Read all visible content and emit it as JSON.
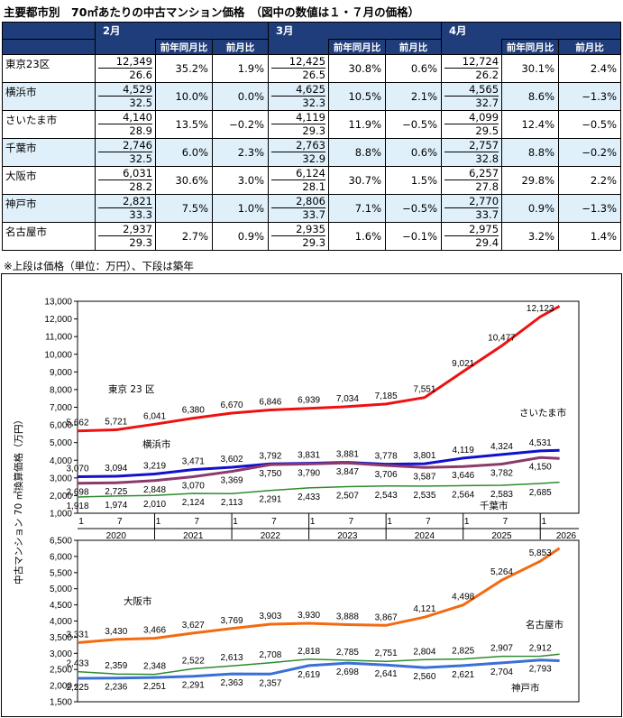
{
  "title": "主要都市別　70㎡あたりの中古マンション価格　（図中の数値は１・７月の価格）",
  "table": {
    "months": [
      "2月",
      "3月",
      "4月"
    ],
    "sub_headers": [
      "前年同月比",
      "前月比"
    ],
    "rows": [
      {
        "city": "東京23区",
        "shade": false,
        "cells": [
          {
            "price": "12,349",
            "age": "26.6",
            "yoy": "35.2%",
            "mom": "1.9%"
          },
          {
            "price": "12,425",
            "age": "26.5",
            "yoy": "30.8%",
            "mom": "0.6%"
          },
          {
            "price": "12,724",
            "age": "26.2",
            "yoy": "30.1%",
            "mom": "2.4%"
          }
        ]
      },
      {
        "city": "横浜市",
        "shade": true,
        "cells": [
          {
            "price": "4,529",
            "age": "32.5",
            "yoy": "10.0%",
            "mom": "0.0%"
          },
          {
            "price": "4,625",
            "age": "32.3",
            "yoy": "10.5%",
            "mom": "2.1%"
          },
          {
            "price": "4,565",
            "age": "32.7",
            "yoy": "8.6%",
            "mom": "−1.3%"
          }
        ]
      },
      {
        "city": "さいたま市",
        "shade": false,
        "cells": [
          {
            "price": "4,140",
            "age": "28.9",
            "yoy": "13.5%",
            "mom": "−0.2%"
          },
          {
            "price": "4,119",
            "age": "29.3",
            "yoy": "11.9%",
            "mom": "−0.5%"
          },
          {
            "price": "4,099",
            "age": "29.5",
            "yoy": "12.4%",
            "mom": "−0.5%"
          }
        ]
      },
      {
        "city": "千葉市",
        "shade": true,
        "cells": [
          {
            "price": "2,746",
            "age": "32.5",
            "yoy": "6.0%",
            "mom": "2.3%"
          },
          {
            "price": "2,763",
            "age": "32.9",
            "yoy": "8.8%",
            "mom": "0.6%"
          },
          {
            "price": "2,757",
            "age": "32.8",
            "yoy": "8.8%",
            "mom": "−0.2%"
          }
        ]
      },
      {
        "city": "大阪市",
        "shade": false,
        "cells": [
          {
            "price": "6,031",
            "age": "28.2",
            "yoy": "30.6%",
            "mom": "3.0%"
          },
          {
            "price": "6,124",
            "age": "28.1",
            "yoy": "30.7%",
            "mom": "1.5%"
          },
          {
            "price": "6,257",
            "age": "27.8",
            "yoy": "29.8%",
            "mom": "2.2%"
          }
        ]
      },
      {
        "city": "神戸市",
        "shade": true,
        "cells": [
          {
            "price": "2,821",
            "age": "33.3",
            "yoy": "7.5%",
            "mom": "1.0%"
          },
          {
            "price": "2,806",
            "age": "33.7",
            "yoy": "7.1%",
            "mom": "−0.5%"
          },
          {
            "price": "2,770",
            "age": "33.7",
            "yoy": "0.9%",
            "mom": "−1.3%"
          }
        ]
      },
      {
        "city": "名古屋市",
        "shade": false,
        "cells": [
          {
            "price": "2,937",
            "age": "29.3",
            "yoy": "2.7%",
            "mom": "0.9%"
          },
          {
            "price": "2,935",
            "age": "29.3",
            "yoy": "1.6%",
            "mom": "−0.1%"
          },
          {
            "price": "2,975",
            "age": "29.4",
            "yoy": "3.2%",
            "mom": "1.4%"
          }
        ]
      }
    ]
  },
  "footnote": "※上段は価格（単位：万円）、下段は築年",
  "chart_data": {
    "type": "line",
    "ylabel": "中古マンション 70 ㎡換算価格（万円）",
    "x": [
      "2020-01",
      "2020-07",
      "2021-01",
      "2021-07",
      "2022-01",
      "2022-07",
      "2023-01",
      "2023-07",
      "2024-01",
      "2024-07",
      "2025-01",
      "2025-07",
      "2026-01",
      "2026-04"
    ],
    "x_tick_labels": [
      "1",
      "7",
      "1",
      "7",
      "1",
      "7",
      "1",
      "7",
      "1",
      "7",
      "1",
      "7",
      "1",
      "7"
    ],
    "year_labels": [
      "2020",
      "2021",
      "2022",
      "2023",
      "2024",
      "2025",
      "2026"
    ],
    "panels": [
      {
        "ylim": [
          1000,
          13000
        ],
        "ytick_step": 1000,
        "series": [
          {
            "name": "東京 23 区",
            "color": "#ee1111",
            "labels": [
              "5,662",
              "5,721",
              "6,041",
              "6,380",
              "6,670",
              "6,846",
              "6,939",
              "7,034",
              "7,185",
              "7,551",
              "9,021",
              "10,477",
              "12,123",
              ""
            ],
            "values": [
              5662,
              5721,
              6041,
              6380,
              6670,
              6846,
              6939,
              7034,
              7185,
              7551,
              9021,
              10477,
              12123,
              12724
            ]
          },
          {
            "name": "横浜市",
            "color": "#1111cc",
            "labels": [
              "3,070",
              "3,094",
              "3,219",
              "3,471",
              "3,602",
              "3,792",
              "3,831",
              "3,881",
              "3,778",
              "3,801",
              "4,119",
              "4,324",
              "4,531",
              ""
            ],
            "values": [
              3070,
              3094,
              3219,
              3471,
              3602,
              3792,
              3831,
              3881,
              3778,
              3801,
              4119,
              4324,
              4531,
              4565
            ]
          },
          {
            "name": "さいたま市",
            "color": "#8b3a6b",
            "labels": [
              "2,698",
              "2,725",
              "2,848",
              "3,070",
              "3,369",
              "3,750",
              "3,790",
              "3,847",
              "3,706",
              "3,587",
              "3,646",
              "3,782",
              "4,150",
              ""
            ],
            "values": [
              2698,
              2725,
              2848,
              3070,
              3369,
              3750,
              3790,
              3847,
              3706,
              3587,
              3646,
              3782,
              4150,
              4099
            ]
          },
          {
            "name": "千葉市",
            "color": "#2e8b2e",
            "labels": [
              "1,918",
              "1,974",
              "2,010",
              "2,124",
              "2,113",
              "2,291",
              "2,433",
              "2,507",
              "2,543",
              "2,535",
              "2,564",
              "2,583",
              "2,685",
              ""
            ],
            "values": [
              1918,
              1974,
              2010,
              2124,
              2113,
              2291,
              2433,
              2507,
              2543,
              2535,
              2564,
              2583,
              2685,
              2757
            ]
          }
        ]
      },
      {
        "ylim": [
          1500,
          6500
        ],
        "ytick_step": 500,
        "series": [
          {
            "name": "大阪市",
            "color": "#f26b10",
            "labels": [
              "3,331",
              "3,430",
              "3,466",
              "3,627",
              "3,769",
              "3,903",
              "3,930",
              "3,888",
              "3,867",
              "4,121",
              "4,498",
              "5,264",
              "5,853",
              ""
            ],
            "values": [
              3331,
              3430,
              3466,
              3627,
              3769,
              3903,
              3930,
              3888,
              3867,
              4121,
              4498,
              5264,
              5853,
              6257
            ]
          },
          {
            "name": "名古屋市",
            "color": "#2e8b2e",
            "labels": [
              "2,433",
              "2,359",
              "2,348",
              "2,522",
              "2,613",
              "2,708",
              "2,818",
              "2,785",
              "2,751",
              "2,804",
              "2,825",
              "2,907",
              "2,912",
              ""
            ],
            "values": [
              2433,
              2359,
              2348,
              2522,
              2613,
              2708,
              2818,
              2785,
              2751,
              2804,
              2825,
              2907,
              2912,
              2975
            ]
          },
          {
            "name": "神戸市",
            "color": "#3b6fd8",
            "labels": [
              "2,225",
              "2,236",
              "2,251",
              "2,291",
              "2,363",
              "2,357",
              "2,619",
              "2,698",
              "2,641",
              "2,560",
              "2,621",
              "2,704",
              "2,793",
              ""
            ],
            "values": [
              2225,
              2236,
              2251,
              2291,
              2363,
              2357,
              2619,
              2698,
              2641,
              2560,
              2621,
              2704,
              2793,
              2770
            ]
          }
        ]
      }
    ]
  }
}
